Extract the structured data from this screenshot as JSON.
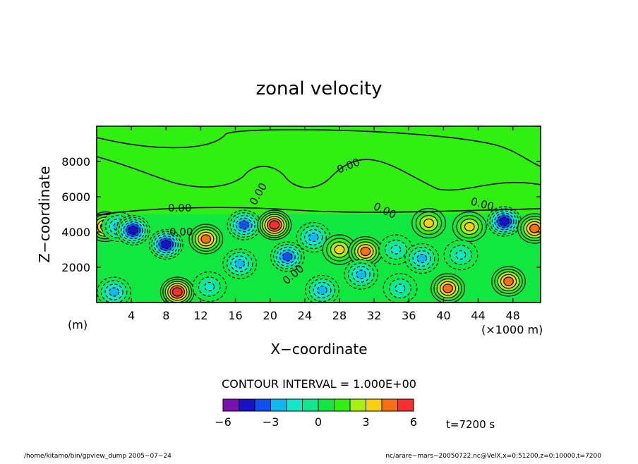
{
  "chart_data": {
    "type": "heatmap",
    "title": "zonal velocity",
    "xlabel": "X−coordinate",
    "ylabel": "Z−coordinate",
    "x_units": "(×1000 m)",
    "y_units": "(m)",
    "xlim": [
      0,
      51.2
    ],
    "ylim": [
      0,
      10000
    ],
    "x_ticks": [
      4,
      8,
      12,
      16,
      20,
      24,
      28,
      32,
      36,
      40,
      44,
      48
    ],
    "x_tick_labels": [
      "4",
      "8",
      "12",
      "16",
      "20",
      "24",
      "28",
      "32",
      "36",
      "40",
      "44",
      "48"
    ],
    "y_ticks": [
      2000,
      4000,
      6000,
      8000
    ],
    "y_tick_labels": [
      "2000",
      "4000",
      "6000",
      "8000"
    ],
    "contour_interval_text": "CONTOUR INTERVAL = 1.000E+00",
    "contour_labels": [
      "0.00",
      "0.00",
      "0.00",
      "0.00",
      "0.00",
      "0.00",
      "0.00"
    ],
    "colorbar": {
      "levels": [
        -6,
        -5,
        -4,
        -3,
        -2,
        -1,
        0,
        1,
        2,
        3,
        4,
        5,
        6
      ],
      "colors": [
        "#7a10b0",
        "#1a10c8",
        "#1050f0",
        "#10b8f0",
        "#10e8c8",
        "#10e890",
        "#10e840",
        "#30f010",
        "#a8f010",
        "#f8d010",
        "#f87010",
        "#f83030",
        "#f8a0a0"
      ],
      "tick_labels": [
        "−6",
        "−3",
        "0",
        "3",
        "6"
      ],
      "tick_values": [
        -6,
        -3,
        0,
        3,
        6
      ]
    },
    "field_features": [
      {
        "kind": "upper-layer",
        "z_min": 5000,
        "value": 0
      },
      {
        "x": 1.0,
        "z": 4300,
        "value": 4
      },
      {
        "x": 2.5,
        "z": 4300,
        "value": -3
      },
      {
        "x": 4.2,
        "z": 4100,
        "value": -5
      },
      {
        "x": 8.0,
        "z": 3300,
        "value": -5
      },
      {
        "x": 9.3,
        "z": 600,
        "value": 5
      },
      {
        "x": 12.6,
        "z": 3600,
        "value": 4
      },
      {
        "x": 16.5,
        "z": 2200,
        "value": -3
      },
      {
        "x": 17.0,
        "z": 4400,
        "value": -4
      },
      {
        "x": 20.5,
        "z": 4400,
        "value": 5
      },
      {
        "x": 22.0,
        "z": 2600,
        "value": -4
      },
      {
        "x": 25.0,
        "z": 3700,
        "value": -3
      },
      {
        "x": 28.0,
        "z": 3000,
        "value": 3
      },
      {
        "x": 31.0,
        "z": 2900,
        "value": 4
      },
      {
        "x": 30.5,
        "z": 1600,
        "value": -3
      },
      {
        "x": 34.5,
        "z": 3000,
        "value": -2
      },
      {
        "x": 38.3,
        "z": 4500,
        "value": 3
      },
      {
        "x": 37.5,
        "z": 2500,
        "value": -3
      },
      {
        "x": 40.5,
        "z": 800,
        "value": 4
      },
      {
        "x": 43.0,
        "z": 4300,
        "value": 3
      },
      {
        "x": 47.0,
        "z": 4600,
        "value": -5
      },
      {
        "x": 47.5,
        "z": 1200,
        "value": 4
      },
      {
        "x": 50.5,
        "z": 4200,
        "value": 4
      },
      {
        "x": 42.0,
        "z": 2700,
        "value": -2
      },
      {
        "x": 2.0,
        "z": 600,
        "value": -3
      },
      {
        "x": 13.0,
        "z": 900,
        "value": -2
      },
      {
        "x": 26.0,
        "z": 700,
        "value": -3
      },
      {
        "x": 35.0,
        "z": 800,
        "value": -2
      }
    ]
  },
  "footer": {
    "left": "/home/kitamo/bin/gpview_dump  2005−07−24",
    "right": "nc/arare−mars−20050722.nc@VelX,x=0:51200,z=0:10000,t=7200",
    "time": "t=7200 s"
  }
}
